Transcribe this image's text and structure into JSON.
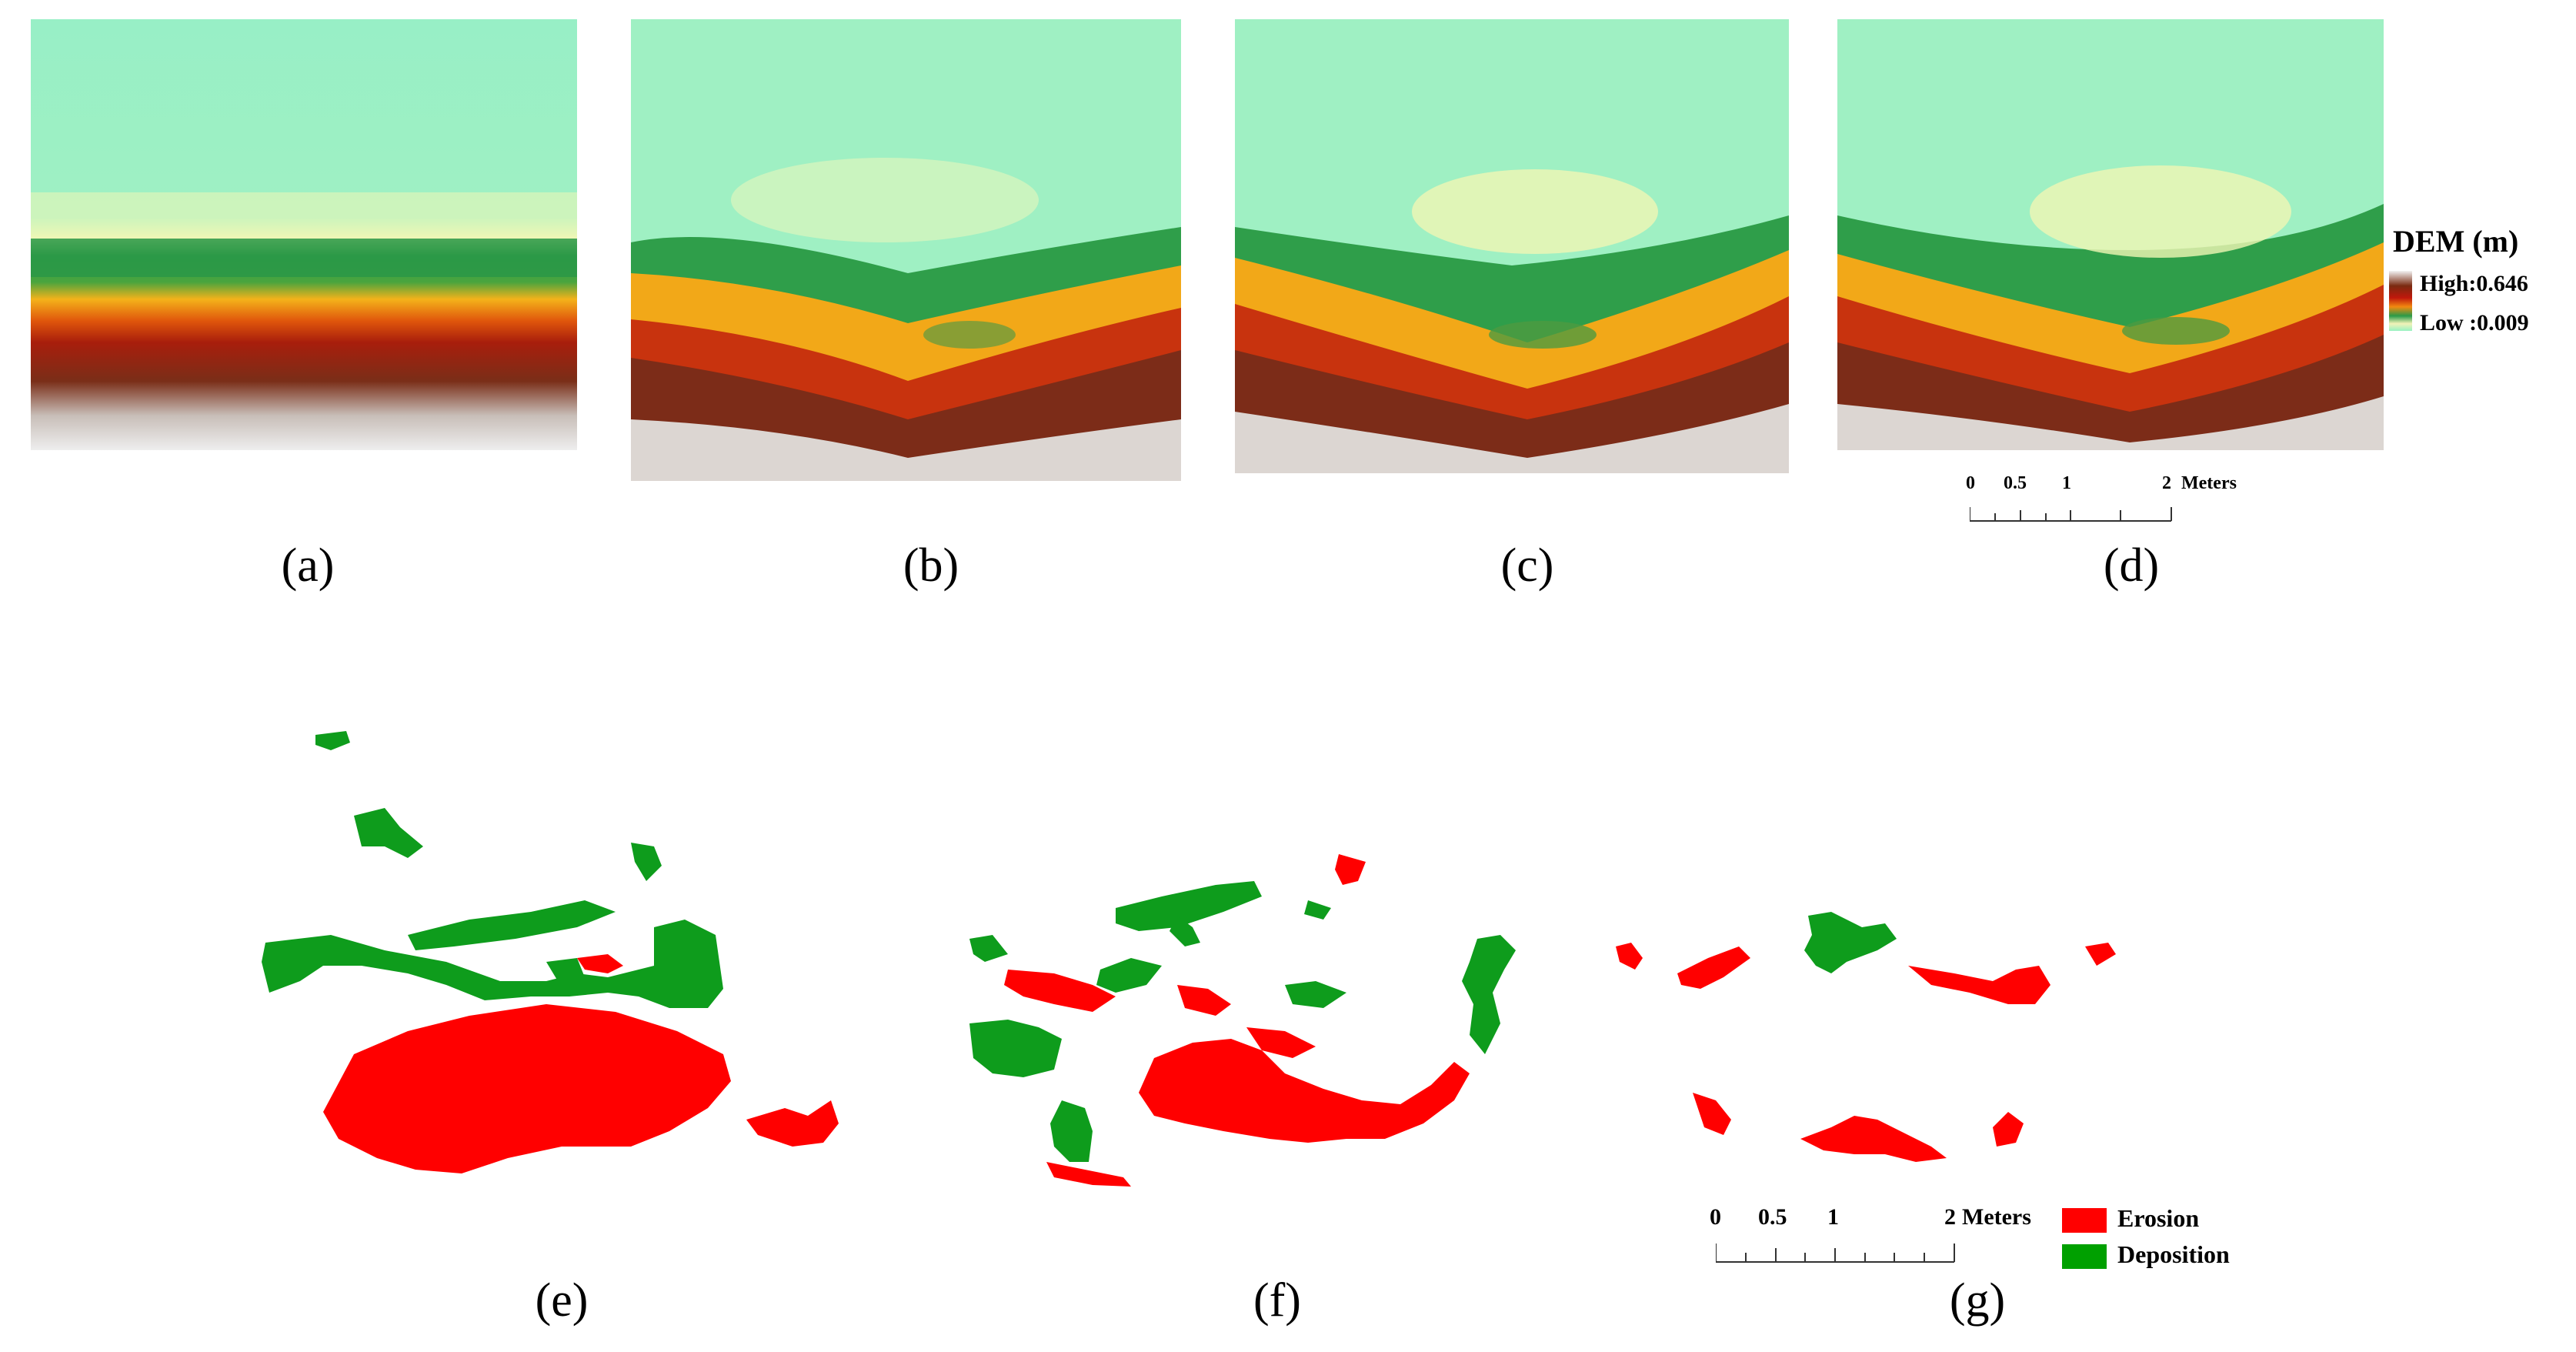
{
  "dem_panels": [
    {
      "label": "(a)",
      "shape": "flat"
    },
    {
      "label": "(b)",
      "shape": "shallow"
    },
    {
      "label": "(c)",
      "shape": "deep"
    },
    {
      "label": "(d)",
      "shape": "deeper"
    }
  ],
  "change_panels": [
    {
      "label": "(e)"
    },
    {
      "label": "(f)"
    },
    {
      "label": "(g)"
    }
  ],
  "dem_legend": {
    "title": "DEM (m)",
    "high": "High:0.646",
    "low": "Low :0.009",
    "ramp_colors": [
      "#f2f2f2",
      "#7a2a10",
      "#c0180c",
      "#f28a10",
      "#2a9a48",
      "#f2f2b8",
      "#98f2c2"
    ]
  },
  "scale_bar_top": {
    "ticks": [
      "0",
      "0.5",
      "1",
      "2"
    ],
    "unit": "Meters"
  },
  "scale_bar_bottom": {
    "ticks": [
      "0",
      "0.5",
      "1",
      "2"
    ],
    "unit": "Meters"
  },
  "change_legend": {
    "items": [
      {
        "label": "Erosion",
        "color": "#ff0000"
      },
      {
        "label": "Deposition",
        "color": "#00a000"
      }
    ]
  },
  "colors": {
    "erosion": "#ff0000",
    "deposition": "#0e9c1c"
  }
}
